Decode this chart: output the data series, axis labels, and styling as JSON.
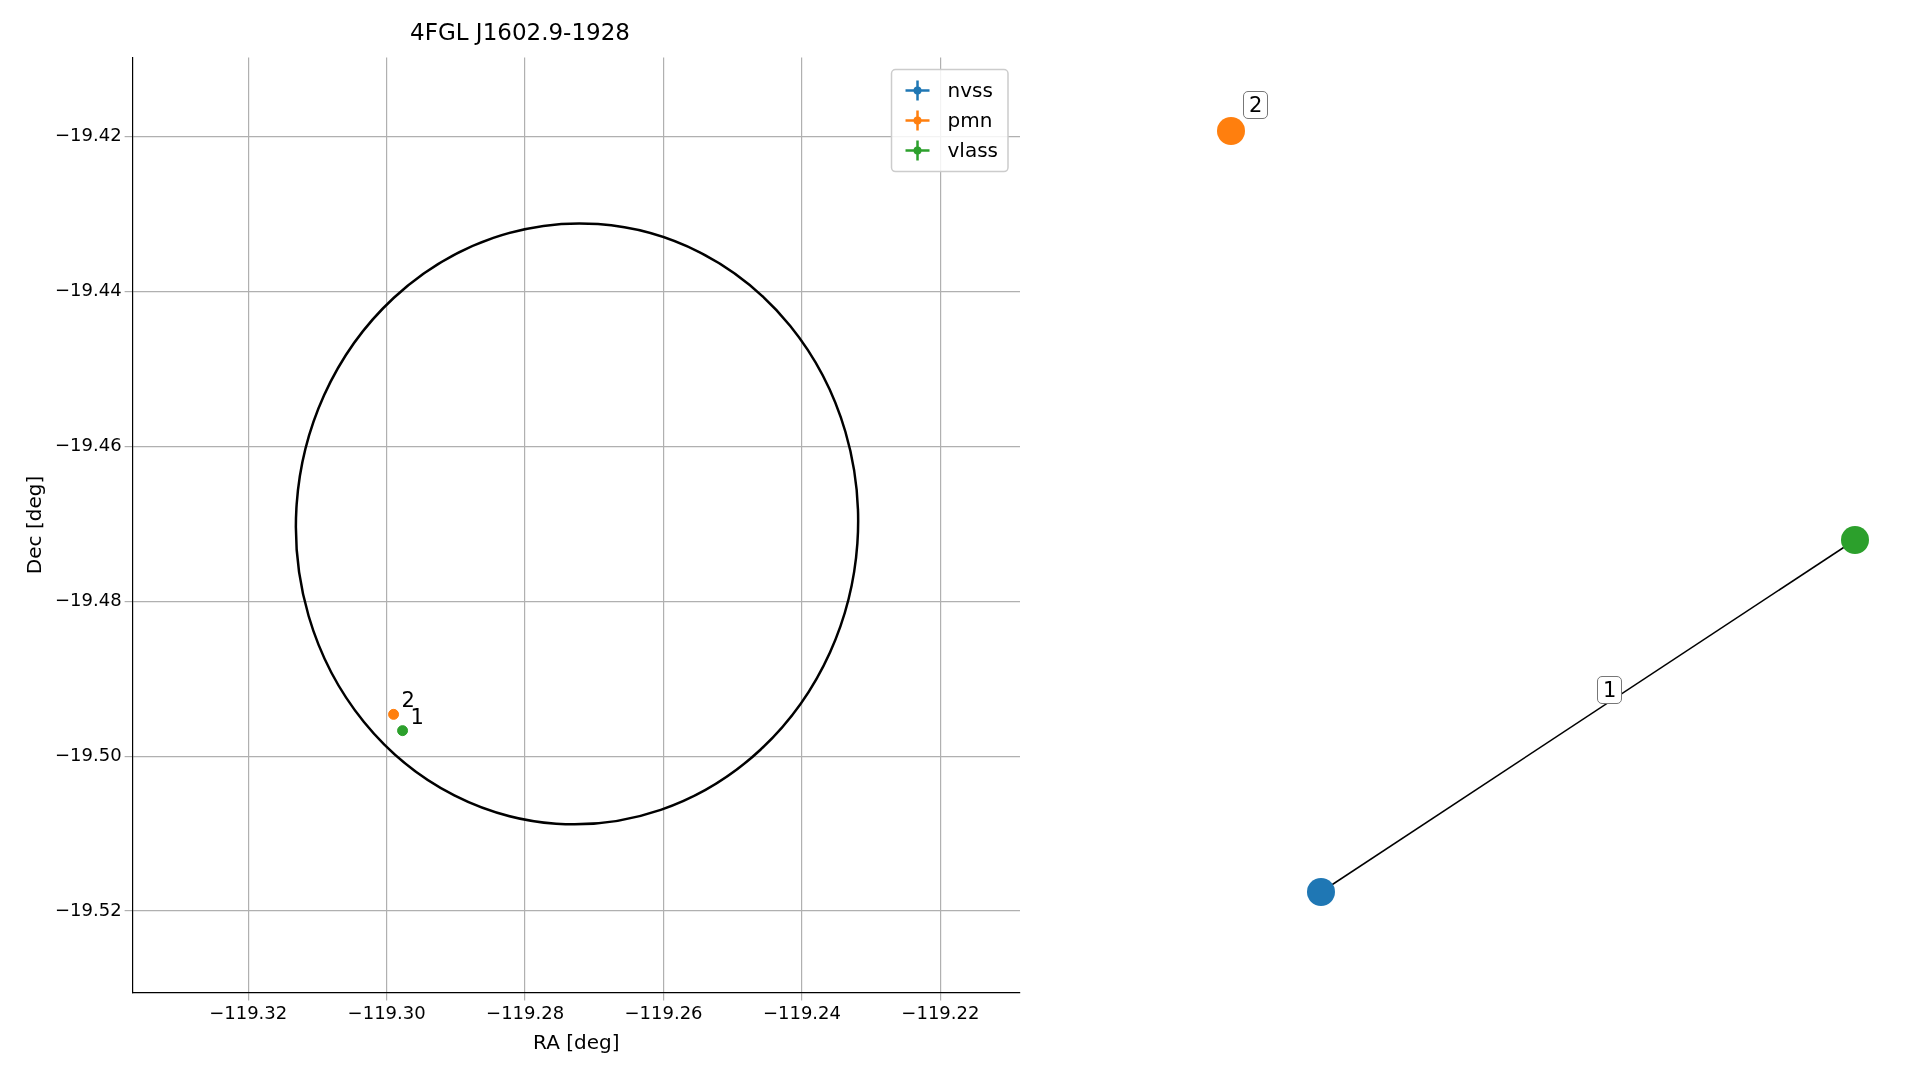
{
  "chart_data": [
    {
      "type": "scatter",
      "title": "4FGL J1602.9-1928",
      "xlabel": "RA [deg]",
      "ylabel": "Dec [deg]",
      "xlim": [
        -119.3367,
        -119.2085
      ],
      "xticks": [
        -119.32,
        {
          "value": -119.3,
          "label": "−119.30"
        },
        -119.28,
        -119.26,
        -119.24,
        -119.22
      ],
      "ylim": [
        -19.5305,
        -19.4098
      ],
      "yticks": [
        -19.52,
        {
          "value": -19.5,
          "label": "−19.50"
        },
        -19.48,
        -19.46,
        -19.44,
        -19.42
      ],
      "grid": true,
      "legend": "top right",
      "marker": "circle",
      "series": [
        {
          "name": "nvss",
          "color": "#1f77b4",
          "x": [
            null
          ],
          "values": [
            null
          ]
        },
        {
          "name": "pmn",
          "color": "#ff7f0e",
          "x": [
            -119.299
          ],
          "values": [
            -19.4946
          ]
        },
        {
          "name": "vlass",
          "color": "#2ca02c",
          "x": [
            -119.2977
          ],
          "values": [
            -19.4967
          ]
        }
      ],
      "annotations": [
        {
          "text": "2",
          "x": -119.299,
          "y": -19.4946
        },
        {
          "text": "1",
          "x": -119.2977,
          "y": -19.4967
        }
      ]
    },
    {
      "type": "other",
      "annotations": [
        "2",
        "1"
      ]
    }
  ]
}
